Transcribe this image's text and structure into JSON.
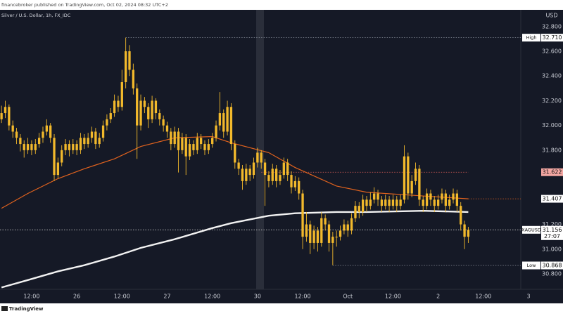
{
  "page": {
    "header": "financebroker published on TradingView.com, Oct 02, 2024 08:32 UTC+2",
    "symbol": "Silver / U.S. Dollar, 1h, FX_IDC",
    "currency": "USD",
    "footer": "TradingView"
  },
  "chart_data": {
    "type": "candlestick",
    "candle_color": "#f2b92c",
    "ohlc": [
      [
        32.05,
        32.16,
        32.02,
        32.1
      ],
      [
        32.1,
        32.2,
        32.06,
        32.15
      ],
      [
        32.15,
        32.17,
        31.96,
        32.0
      ],
      [
        32.0,
        32.04,
        31.9,
        31.95
      ],
      [
        31.95,
        31.98,
        31.85,
        31.9
      ],
      [
        31.9,
        31.93,
        31.79,
        31.85
      ],
      [
        31.85,
        31.88,
        31.74,
        31.8
      ],
      [
        31.8,
        31.9,
        31.77,
        31.85
      ],
      [
        31.85,
        31.88,
        31.76,
        31.8
      ],
      [
        31.8,
        31.89,
        31.77,
        31.85
      ],
      [
        31.85,
        31.94,
        31.82,
        31.9
      ],
      [
        31.9,
        31.99,
        31.86,
        31.95
      ],
      [
        31.95,
        32.05,
        31.92,
        32.0
      ],
      [
        32.0,
        32.02,
        31.86,
        31.9
      ],
      [
        31.9,
        31.93,
        31.55,
        31.6
      ],
      [
        31.6,
        31.74,
        31.57,
        31.7
      ],
      [
        31.7,
        31.84,
        31.67,
        31.8
      ],
      [
        31.8,
        31.89,
        31.76,
        31.85
      ],
      [
        31.85,
        31.88,
        31.75,
        31.8
      ],
      [
        31.8,
        31.89,
        31.77,
        31.85
      ],
      [
        31.85,
        31.88,
        31.76,
        31.8
      ],
      [
        31.8,
        31.94,
        31.77,
        31.9
      ],
      [
        31.9,
        31.93,
        31.81,
        31.85
      ],
      [
        31.85,
        31.94,
        31.82,
        31.9
      ],
      [
        31.9,
        31.99,
        31.86,
        31.95
      ],
      [
        31.95,
        31.98,
        31.81,
        31.85
      ],
      [
        31.85,
        31.94,
        31.82,
        31.9
      ],
      [
        31.9,
        32.04,
        31.87,
        32.0
      ],
      [
        32.0,
        32.09,
        31.96,
        32.05
      ],
      [
        32.05,
        32.14,
        32.02,
        32.1
      ],
      [
        32.1,
        32.25,
        32.07,
        32.2
      ],
      [
        32.2,
        32.24,
        32.11,
        32.15
      ],
      [
        32.15,
        32.45,
        32.12,
        32.35
      ],
      [
        32.35,
        32.71,
        32.3,
        32.6
      ],
      [
        32.6,
        32.65,
        32.4,
        32.45
      ],
      [
        32.45,
        32.5,
        32.25,
        32.3
      ],
      [
        32.3,
        32.34,
        31.73,
        32.0
      ],
      [
        32.0,
        32.25,
        31.96,
        32.2
      ],
      [
        32.2,
        32.23,
        32.1,
        32.15
      ],
      [
        32.15,
        32.18,
        31.98,
        32.05
      ],
      [
        32.05,
        32.24,
        32.02,
        32.2
      ],
      [
        32.2,
        32.22,
        32.05,
        32.1
      ],
      [
        32.1,
        32.13,
        32.0,
        32.05
      ],
      [
        32.05,
        32.08,
        31.95,
        32.0
      ],
      [
        32.0,
        32.03,
        31.9,
        31.95
      ],
      [
        31.95,
        31.98,
        31.8,
        31.85
      ],
      [
        31.85,
        31.99,
        31.82,
        31.95
      ],
      [
        31.95,
        31.98,
        31.62,
        31.8
      ],
      [
        31.8,
        31.94,
        31.77,
        31.9
      ],
      [
        31.9,
        31.93,
        31.6,
        31.75
      ],
      [
        31.75,
        31.89,
        31.72,
        31.85
      ],
      [
        31.85,
        31.88,
        31.76,
        31.8
      ],
      [
        31.8,
        31.94,
        31.77,
        31.9
      ],
      [
        31.9,
        31.93,
        31.81,
        31.85
      ],
      [
        31.85,
        31.88,
        31.76,
        31.8
      ],
      [
        31.8,
        31.89,
        31.77,
        31.85
      ],
      [
        31.85,
        31.94,
        31.82,
        31.9
      ],
      [
        31.9,
        32.04,
        31.87,
        32.0
      ],
      [
        32.0,
        32.27,
        31.96,
        32.1
      ],
      [
        32.1,
        32.13,
        31.9,
        31.95
      ],
      [
        31.95,
        32.2,
        31.92,
        32.15
      ],
      [
        32.15,
        32.18,
        31.8,
        31.85
      ],
      [
        31.85,
        31.88,
        31.65,
        31.7
      ],
      [
        31.7,
        31.73,
        31.6,
        31.65
      ],
      [
        31.65,
        31.68,
        31.48,
        31.55
      ],
      [
        31.55,
        31.69,
        31.52,
        31.65
      ],
      [
        31.65,
        31.68,
        31.55,
        31.6
      ],
      [
        31.6,
        31.74,
        31.57,
        31.7
      ],
      [
        31.7,
        31.82,
        31.66,
        31.78
      ],
      [
        31.78,
        31.8,
        31.65,
        31.7
      ],
      [
        31.7,
        31.73,
        31.35,
        31.6
      ],
      [
        31.6,
        31.63,
        31.5,
        31.55
      ],
      [
        31.55,
        31.69,
        31.52,
        31.65
      ],
      [
        31.65,
        31.68,
        31.5,
        31.55
      ],
      [
        31.55,
        31.64,
        31.52,
        31.6
      ],
      [
        31.6,
        31.74,
        31.57,
        31.7
      ],
      [
        31.7,
        31.73,
        31.55,
        31.6
      ],
      [
        31.6,
        31.63,
        31.45,
        31.5
      ],
      [
        31.5,
        31.59,
        31.47,
        31.55
      ],
      [
        31.55,
        31.58,
        31.4,
        31.45
      ],
      [
        31.45,
        31.48,
        31.0,
        31.1
      ],
      [
        31.1,
        31.3,
        31.06,
        31.2
      ],
      [
        31.2,
        31.23,
        30.96,
        31.05
      ],
      [
        31.05,
        31.19,
        31.0,
        31.15
      ],
      [
        31.15,
        31.18,
        30.98,
        31.05
      ],
      [
        31.05,
        31.3,
        31.02,
        31.25
      ],
      [
        31.25,
        31.28,
        31.15,
        31.2
      ],
      [
        31.2,
        31.23,
        30.98,
        31.05
      ],
      [
        31.05,
        31.14,
        30.87,
        31.1
      ],
      [
        31.1,
        31.15,
        31.02,
        31.1
      ],
      [
        31.1,
        31.19,
        31.07,
        31.15
      ],
      [
        31.15,
        31.24,
        31.12,
        31.2
      ],
      [
        31.2,
        31.23,
        31.1,
        31.15
      ],
      [
        31.15,
        31.29,
        31.12,
        31.25
      ],
      [
        31.25,
        31.39,
        31.22,
        31.35
      ],
      [
        31.35,
        31.38,
        31.25,
        31.3
      ],
      [
        31.3,
        31.44,
        31.27,
        31.4
      ],
      [
        31.4,
        31.43,
        31.3,
        31.35
      ],
      [
        31.35,
        31.46,
        31.32,
        31.4
      ],
      [
        31.4,
        31.5,
        31.37,
        31.45
      ],
      [
        31.45,
        31.48,
        31.35,
        31.4
      ],
      [
        31.4,
        31.43,
        31.3,
        31.35
      ],
      [
        31.35,
        31.44,
        31.32,
        31.4
      ],
      [
        31.4,
        31.43,
        31.3,
        31.35
      ],
      [
        31.35,
        31.44,
        31.32,
        31.4
      ],
      [
        31.4,
        31.43,
        31.3,
        31.35
      ],
      [
        31.35,
        31.44,
        31.32,
        31.4
      ],
      [
        31.4,
        31.84,
        31.37,
        31.75
      ],
      [
        31.75,
        31.78,
        31.4,
        31.45
      ],
      [
        31.45,
        31.6,
        31.42,
        31.55
      ],
      [
        31.55,
        31.7,
        31.52,
        31.65
      ],
      [
        31.65,
        31.68,
        31.35,
        31.4
      ],
      [
        31.4,
        31.43,
        31.3,
        31.35
      ],
      [
        31.35,
        31.49,
        31.32,
        31.45
      ],
      [
        31.45,
        31.48,
        31.35,
        31.4
      ],
      [
        31.4,
        31.43,
        31.3,
        31.35
      ],
      [
        31.35,
        31.44,
        31.32,
        31.4
      ],
      [
        31.4,
        31.49,
        31.37,
        31.45
      ],
      [
        31.45,
        31.48,
        31.3,
        31.35
      ],
      [
        31.35,
        31.44,
        31.32,
        31.4
      ],
      [
        31.4,
        31.49,
        31.37,
        31.45
      ],
      [
        31.45,
        31.48,
        31.3,
        31.35
      ],
      [
        31.35,
        31.38,
        31.15,
        31.2
      ],
      [
        31.2,
        31.23,
        31.0,
        31.1
      ],
      [
        31.1,
        31.18,
        31.05,
        31.156
      ]
    ],
    "lines": [
      {
        "color": "#e0621e",
        "width": 1.2,
        "x": [
          0,
          7,
          15,
          22,
          30,
          37,
          46,
          56,
          61,
          71,
          78,
          89,
          97,
          112,
          124
        ],
        "values": [
          31.33,
          31.45,
          31.57,
          31.65,
          31.73,
          31.83,
          31.9,
          31.91,
          31.86,
          31.78,
          31.66,
          31.51,
          31.46,
          31.43,
          31.407
        ]
      },
      {
        "color": "#f2f2f2",
        "width": 2.4,
        "x": [
          0,
          7,
          15,
          22,
          30,
          37,
          46,
          56,
          61,
          71,
          78,
          89,
          97,
          112,
          124
        ],
        "values": [
          30.69,
          30.75,
          30.82,
          30.87,
          30.94,
          31.01,
          31.08,
          31.17,
          31.21,
          31.27,
          31.29,
          31.3,
          31.3,
          31.31,
          31.3
        ]
      }
    ],
    "levels": [
      {
        "name": "High",
        "value": 32.71,
        "label": "32.710",
        "color": "#8a8f9c",
        "box": "#ffffff",
        "from": 33
      },
      {
        "name": "Low",
        "value": 30.868,
        "label": "30.868",
        "color": "#8a8f9c",
        "box": "#ffffff",
        "from": 88
      },
      {
        "value": 31.622,
        "label": "31.622",
        "color": "#e0605a",
        "box": "#f4a7a3",
        "from": 69,
        "to": 124
      },
      {
        "value": 31.407,
        "label": "31.407",
        "color": "#e0621e",
        "box": "#ffffff",
        "from": 124
      },
      {
        "name": "XAGUSD",
        "value": 31.156,
        "label": "31.156",
        "countdown": "27:07",
        "color": "#c9c9c9",
        "box": "#ffffff",
        "from": -0.4
      }
    ],
    "ylim": [
      30.675,
      32.935
    ],
    "yticks": [
      {
        "value": 30.8,
        "label": "30.800"
      },
      {
        "value": 31.0,
        "label": "31.000"
      },
      {
        "value": 31.2,
        "label": "31.200"
      },
      {
        "value": 31.8,
        "label": "31.800"
      },
      {
        "value": 32.0,
        "label": "32.000"
      },
      {
        "value": 32.2,
        "label": "32.200"
      },
      {
        "value": 32.4,
        "label": "32.400"
      },
      {
        "value": 32.6,
        "label": "32.600"
      },
      {
        "value": 32.8,
        "label": "32.800"
      }
    ],
    "xlim": [
      -0.4,
      140
    ],
    "xticks": [
      {
        "value": 8,
        "label": "12:00"
      },
      {
        "value": 20,
        "label": "26"
      },
      {
        "value": 32,
        "label": "12:00"
      },
      {
        "value": 44,
        "label": "27"
      },
      {
        "value": 56,
        "label": "12:00"
      },
      {
        "value": 68,
        "label": "30"
      },
      {
        "value": 80,
        "label": "12:00"
      },
      {
        "value": 92,
        "label": "Oct"
      },
      {
        "value": 104,
        "label": "12:00"
      },
      {
        "value": 116,
        "label": "2"
      },
      {
        "value": 128,
        "label": "12:00"
      },
      {
        "value": 140,
        "label": "3"
      }
    ]
  }
}
